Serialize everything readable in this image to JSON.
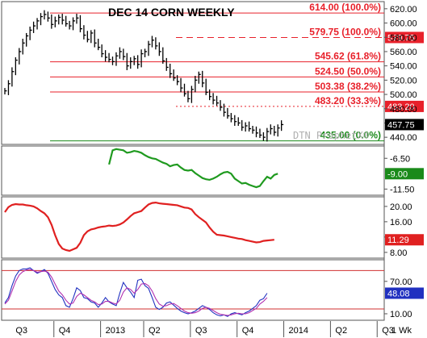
{
  "chart_data": [
    {
      "type": "candlestick",
      "title": "DEC 14 CORN WEEKLY",
      "watermark": "DTN ProphetX®",
      "ylim": [
        430,
        630
      ],
      "y_ticks": [
        "620.00",
        "600.00",
        "580.00",
        "560.00",
        "540.00",
        "520.00",
        "500.00",
        "480.00",
        "460.00",
        "440.00"
      ],
      "y_tick_values": [
        620,
        600,
        580,
        560,
        540,
        520,
        500,
        480,
        460,
        440
      ],
      "last_price": {
        "label": "457.75",
        "value": 457.75
      },
      "levels": [
        {
          "price": 614.0,
          "label": "614.00 (100.0%)",
          "color": "#e8202a",
          "style": "solid"
        },
        {
          "price": 579.75,
          "label": "579.75 (100.0%)",
          "color": "#e8202a",
          "style": "dashed",
          "tag": "579.75"
        },
        {
          "price": 545.62,
          "label": "545.62 (61.8%)",
          "color": "#e8202a",
          "style": "solid"
        },
        {
          "price": 524.5,
          "label": "524.50 (50.0%)",
          "color": "#e8202a",
          "style": "solid"
        },
        {
          "price": 503.38,
          "label": "503.38 (38.2%)",
          "color": "#e8202a",
          "style": "solid"
        },
        {
          "price": 483.2,
          "label": "483.20 (33.3%)",
          "color": "#e8202a",
          "style": "dotted",
          "tag": "483.20"
        },
        {
          "price": 435.0,
          "label": "435.00 (0.0%)",
          "color": "#1a8a1a",
          "style": "solid"
        }
      ],
      "week_index_range": [
        0,
        80
      ],
      "closes": [
        505,
        515,
        532,
        548,
        560,
        572,
        582,
        590,
        596,
        603,
        609,
        612,
        607,
        598,
        603,
        608,
        604,
        599,
        596,
        603,
        607,
        592,
        583,
        577,
        586,
        572,
        566,
        557,
        552,
        549,
        546,
        554,
        560,
        553,
        540,
        546,
        550,
        542,
        557,
        560,
        570,
        576,
        568,
        560,
        547,
        538,
        529,
        523,
        518,
        509,
        501,
        494,
        507,
        520,
        528,
        516,
        503,
        497,
        492,
        488,
        482,
        475,
        470,
        466,
        462,
        460,
        454,
        456,
        452,
        450,
        446,
        443,
        440,
        448,
        452,
        447,
        453,
        457.75
      ]
    },
    {
      "type": "line",
      "indicator": "green oscillator",
      "ylim": [
        -12.5,
        -4.5
      ],
      "y_ticks": [
        "-6.50",
        "-11.50"
      ],
      "y_tick_values": [
        -6.5,
        -11.5
      ],
      "last_value": {
        "label": "-9.00",
        "value": -9.0
      },
      "series": [
        {
          "color": "#1f9a1f",
          "start_week": 29,
          "values": [
            -7.5,
            -5.2,
            -5.0,
            -5.1,
            -5.2,
            -5.6,
            -5.5,
            -5.3,
            -5.4,
            -5.6,
            -6.0,
            -6.3,
            -6.5,
            -6.6,
            -6.9,
            -7.2,
            -7.4,
            -7.8,
            -7.6,
            -7.5,
            -8.0,
            -8.4,
            -8.5,
            -8.4,
            -8.9,
            -9.3,
            -9.7,
            -9.9,
            -10.0,
            -9.8,
            -9.5,
            -9.1,
            -8.8,
            -8.7,
            -9.0,
            -9.8,
            -10.2,
            -10.6,
            -10.5,
            -10.8,
            -11.0,
            -11.2,
            -11.0,
            -10.2,
            -9.5,
            -9.8,
            -9.2,
            -9.0
          ]
        }
      ]
    },
    {
      "type": "line",
      "indicator": "red indicator",
      "ylim": [
        6.5,
        22.5
      ],
      "y_ticks": [
        "20.00",
        "16.00",
        "12.00",
        "8.00"
      ],
      "y_tick_values": [
        20,
        16,
        12,
        8
      ],
      "last_value": {
        "label": "11.29",
        "value": 11.29
      },
      "series": [
        {
          "color": "#e02020",
          "start_week": 0,
          "values": [
            18.5,
            19.8,
            20.4,
            20.6,
            20.5,
            20.5,
            20.3,
            20.2,
            20.0,
            19.5,
            18.8,
            18.2,
            17.2,
            15.2,
            12.5,
            10.2,
            9.0,
            8.6,
            8.4,
            8.8,
            9.2,
            10.5,
            12.5,
            13.5,
            14.0,
            14.2,
            14.5,
            14.7,
            14.8,
            15.0,
            14.9,
            15.0,
            15.3,
            15.8,
            16.6,
            17.5,
            18.2,
            18.5,
            18.8,
            19.7,
            20.5,
            20.9,
            21.0,
            20.8,
            20.7,
            20.6,
            20.5,
            20.4,
            20.3,
            20.0,
            19.7,
            19.6,
            19.2,
            18.0,
            17.2,
            16.5,
            15.8,
            14.5,
            13.4,
            12.6,
            12.5,
            12.4,
            12.2,
            12.0,
            11.8,
            11.6,
            11.5,
            11.2,
            11.0,
            10.8,
            10.6,
            10.7,
            11.0,
            11.1,
            11.2,
            11.29
          ]
        }
      ]
    },
    {
      "type": "line",
      "indicator": "stochastic",
      "ylim": [
        -2,
        110
      ],
      "y_ticks": [
        "70.00",
        "10.00"
      ],
      "y_tick_values": [
        70,
        10
      ],
      "reference_lines": [
        {
          "value": 90,
          "color": "#d03030"
        },
        {
          "value": 19,
          "color": "#d03030"
        }
      ],
      "last_value": {
        "label": "48.08",
        "value": 48.08
      },
      "series": [
        {
          "name": "%K",
          "color": "#2030c0",
          "start_week": 0,
          "values": [
            30,
            40,
            62,
            80,
            90,
            93,
            93,
            95,
            90,
            85,
            88,
            92,
            85,
            70,
            55,
            45,
            40,
            25,
            22,
            38,
            58,
            53,
            40,
            38,
            32,
            30,
            22,
            30,
            40,
            32,
            28,
            25,
            48,
            68,
            58,
            50,
            40,
            72,
            74,
            62,
            57,
            40,
            22,
            18,
            22,
            30,
            32,
            26,
            20,
            15,
            12,
            10,
            12,
            15,
            20,
            25,
            22,
            18,
            12,
            8,
            6,
            8,
            5,
            10,
            12,
            10,
            8,
            12,
            15,
            20,
            25,
            35,
            38,
            48.08
          ]
        },
        {
          "name": "%D",
          "color": "#b030b0",
          "start_week": 0,
          "values": [
            28,
            35,
            52,
            70,
            82,
            88,
            91,
            92,
            90,
            87,
            88,
            89,
            87,
            78,
            65,
            52,
            45,
            35,
            28,
            30,
            42,
            48,
            45,
            40,
            35,
            32,
            27,
            28,
            33,
            33,
            30,
            28,
            35,
            50,
            58,
            55,
            48,
            55,
            65,
            66,
            62,
            52,
            38,
            28,
            24,
            25,
            28,
            29,
            25,
            20,
            15,
            12,
            11,
            12,
            15,
            20,
            22,
            20,
            16,
            12,
            9,
            8,
            7,
            8,
            10,
            11,
            10,
            10,
            12,
            16,
            20,
            28,
            33,
            40
          ]
        }
      ]
    }
  ],
  "time_axis": {
    "labels": [
      "Q3",
      "Q4",
      "2013",
      "Q2",
      "Q3",
      "Q4",
      "2014",
      "Q2",
      "Q3"
    ],
    "label_weeks": [
      3,
      15,
      28,
      40,
      53,
      66,
      79,
      92,
      105
    ],
    "period_label": "1 Wk"
  }
}
